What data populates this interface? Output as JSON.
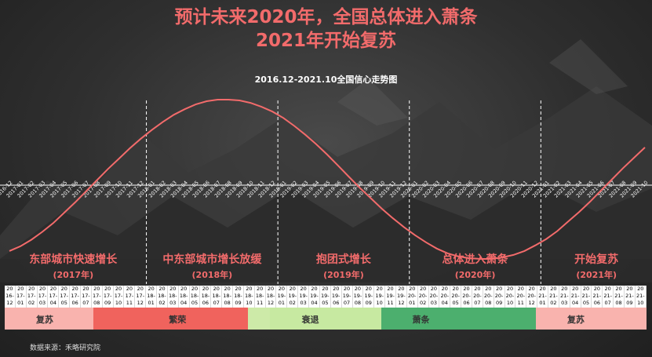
{
  "title_line1": "预计未来2020年，全国总体进入萧条",
  "title_line2": "2021年开始复苏",
  "source": "数据来源：禾略研究院",
  "colors": {
    "curve": "#f26b6b",
    "title": "#f26b6b",
    "band_recovery": "#f9b3ae",
    "band_boom": "#f0635d",
    "band_recession_light": "#cdeaa8",
    "band_recession": "#c7e9a1",
    "band_depression": "#4caf6e"
  },
  "phases": [
    {
      "title": "东部城市快速增长",
      "year": "(2017年)"
    },
    {
      "title": "中东部城市增长放缓",
      "year": "(2018年)"
    },
    {
      "title": "抱团式增长",
      "year": "(2019年)"
    },
    {
      "title": "总体进入萧条",
      "year": "(2020年)"
    },
    {
      "title": "开始复苏",
      "year": "(2021年)"
    }
  ],
  "bands": [
    {
      "label": "复苏",
      "months": 8,
      "color": "#f9b3ae"
    },
    {
      "label": "",
      "months": 4,
      "color": "#f0635d"
    },
    {
      "label": "繁荣",
      "months": 10,
      "color": "#f0635d"
    },
    {
      "label": "",
      "months": 2,
      "color": "#cdeaa8"
    },
    {
      "label": "衰退",
      "months": 10,
      "color": "#c7e9a1"
    },
    {
      "label": "萧条",
      "months": 14,
      "color": "#4caf6e"
    },
    {
      "label": "复苏",
      "months": 10,
      "color": "#f9b3ae"
    }
  ],
  "chart_data": {
    "type": "line",
    "title": "2016.12-2021.10全国信心走势图",
    "xlabel": "",
    "ylabel": "",
    "x": [
      "2016-12",
      "2017-01",
      "2017-02",
      "2017-03",
      "2017-04",
      "2017-05",
      "2017-06",
      "2017-07",
      "2017-08",
      "2017-09",
      "2017-10",
      "2017-11",
      "2017-12",
      "2018-01",
      "2018-02",
      "2018-03",
      "2018-04",
      "2018-05",
      "2018-06",
      "2018-07",
      "2018-08",
      "2018-09",
      "2018-10",
      "2018-11",
      "2018-12",
      "2019-01",
      "2019-02",
      "2019-03",
      "2019-04",
      "2019-05",
      "2019-06",
      "2019-07",
      "2019-08",
      "2019-09",
      "2019-10",
      "2019-11",
      "2019-12",
      "2020-01",
      "2020-02",
      "2020-03",
      "2020-04",
      "2020-05",
      "2020-06",
      "2020-07",
      "2020-08",
      "2020-09",
      "2020-10",
      "2020-11",
      "2020-12",
      "2021-01",
      "2021-02",
      "2021-03",
      "2021-04",
      "2021-05",
      "2021-06",
      "2021-07",
      "2021-08",
      "2021-09",
      "2021-10"
    ],
    "values": [
      -0.9,
      -0.84,
      -0.76,
      -0.66,
      -0.55,
      -0.42,
      -0.29,
      -0.15,
      -0.01,
      0.13,
      0.26,
      0.39,
      0.51,
      0.62,
      0.72,
      0.81,
      0.88,
      0.94,
      0.98,
      1.0,
      1.0,
      0.99,
      0.96,
      0.91,
      0.85,
      0.77,
      0.67,
      0.56,
      0.44,
      0.31,
      0.17,
      0.03,
      -0.11,
      -0.24,
      -0.37,
      -0.49,
      -0.6,
      -0.7,
      -0.79,
      -0.87,
      -0.93,
      -0.97,
      -0.99,
      -1.0,
      -1.0,
      -0.98,
      -0.95,
      -0.9,
      -0.83,
      -0.75,
      -0.65,
      -0.53,
      -0.41,
      -0.28,
      -0.14,
      0.0,
      0.14,
      0.27,
      0.4
    ],
    "ylim": [
      -1.2,
      1.2
    ],
    "dividers": [
      "2017-12",
      "2018-12",
      "2019-12",
      "2020-12"
    ],
    "grid": false
  }
}
